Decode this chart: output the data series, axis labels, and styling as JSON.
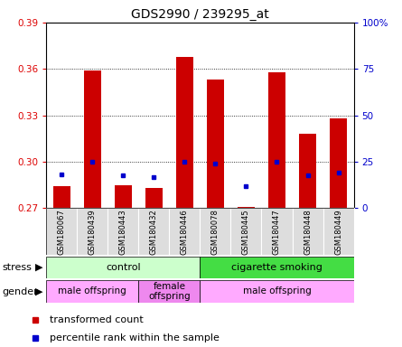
{
  "title": "GDS2990 / 239295_at",
  "samples": [
    "GSM180067",
    "GSM180439",
    "GSM180443",
    "GSM180432",
    "GSM180446",
    "GSM180078",
    "GSM180445",
    "GSM180447",
    "GSM180448",
    "GSM180449"
  ],
  "red_values": [
    0.284,
    0.359,
    0.285,
    0.283,
    0.368,
    0.353,
    0.271,
    0.358,
    0.318,
    0.328
  ],
  "blue_values": [
    0.292,
    0.3,
    0.291,
    0.29,
    0.3,
    0.299,
    0.284,
    0.3,
    0.291,
    0.293
  ],
  "ylim_left": [
    0.27,
    0.39
  ],
  "ylim_right": [
    0,
    100
  ],
  "yticks_left": [
    0.27,
    0.3,
    0.33,
    0.36,
    0.39
  ],
  "yticks_right": [
    0,
    25,
    50,
    75,
    100
  ],
  "left_tick_color": "#dd0000",
  "right_tick_color": "#0000cc",
  "bar_color": "#cc0000",
  "dot_color": "#0000cc",
  "stress_groups": [
    {
      "label": "control",
      "start": 0,
      "end": 5,
      "color": "#ccffcc"
    },
    {
      "label": "cigarette smoking",
      "start": 5,
      "end": 10,
      "color": "#44dd44"
    }
  ],
  "gender_groups": [
    {
      "label": "male offspring",
      "start": 0,
      "end": 3,
      "color": "#ffaaff"
    },
    {
      "label": "female\noffspring",
      "start": 3,
      "end": 5,
      "color": "#ee88ee"
    },
    {
      "label": "male offspring",
      "start": 5,
      "end": 10,
      "color": "#ffaaff"
    }
  ],
  "legend_items": [
    {
      "label": "transformed count",
      "color": "#cc0000"
    },
    {
      "label": "percentile rank within the sample",
      "color": "#0000cc"
    }
  ],
  "base_value": 0.27,
  "bg_color": "#ffffff",
  "label_bg": "#dddddd"
}
